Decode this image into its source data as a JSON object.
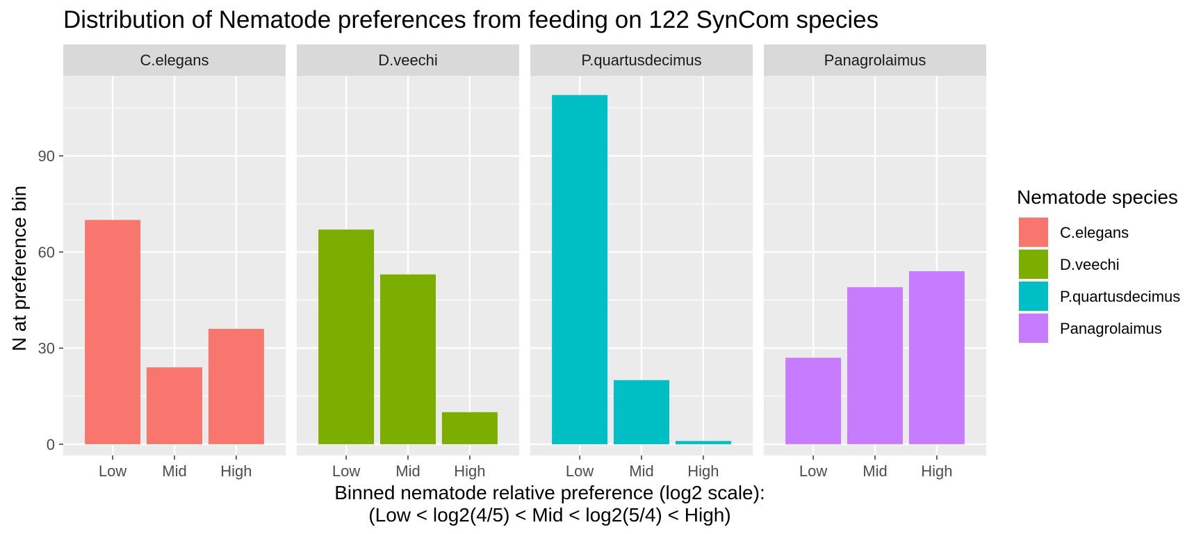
{
  "chart_data": {
    "type": "bar",
    "title": "Distribution of Nematode preferences from feeding on 122 SynCom species",
    "xlabel_line1": "Binned nematode relative preference (log2 scale):",
    "xlabel_line2": "(Low < log2(4/5) < Mid < log2(5/4) < High)",
    "ylabel": "N at preference bin",
    "categories": [
      "Low",
      "Mid",
      "High"
    ],
    "ylim": [
      -3.5,
      115
    ],
    "yticks": [
      0,
      30,
      60,
      90
    ],
    "grid": true,
    "legend_title": "Nematode species",
    "legend_position": "right",
    "series": [
      {
        "name": "C.elegans",
        "color": "#F8766D",
        "values": [
          70,
          24,
          36
        ]
      },
      {
        "name": "D.veechi",
        "color": "#7CAE00",
        "values": [
          67,
          53,
          10
        ]
      },
      {
        "name": "P.quartusdecimus",
        "color": "#00BFC4",
        "values": [
          109,
          20,
          1
        ]
      },
      {
        "name": "Panagrolaimus",
        "color": "#C77CFF",
        "values": [
          27,
          49,
          54
        ]
      }
    ]
  }
}
